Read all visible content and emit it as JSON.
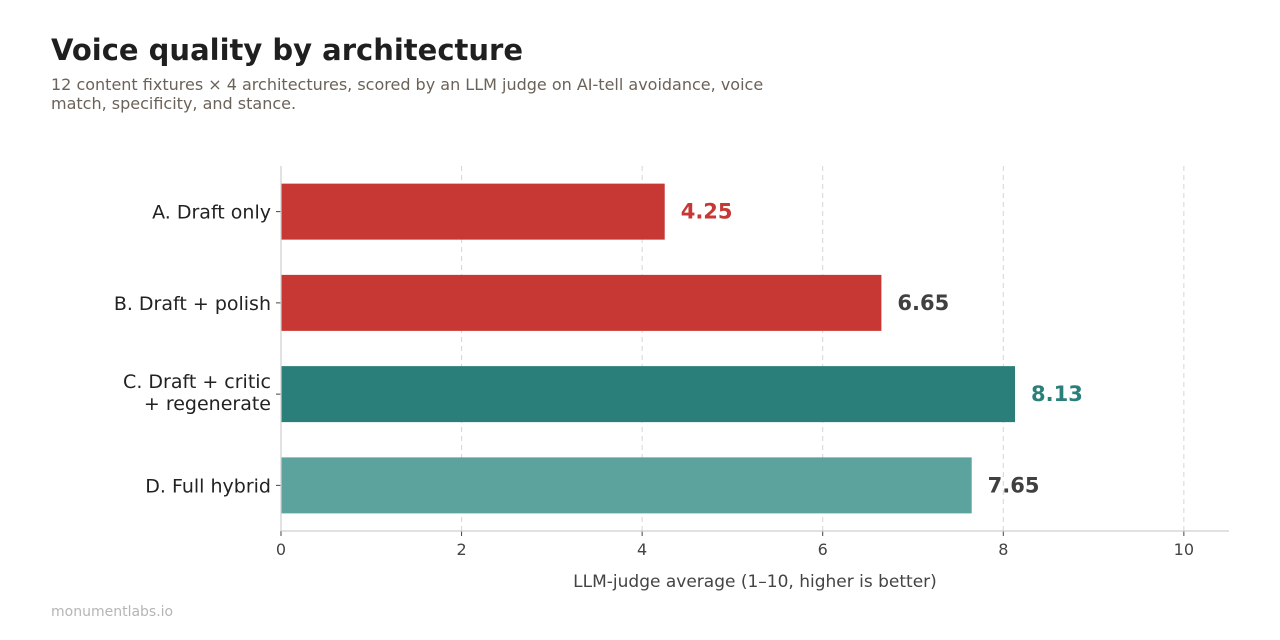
{
  "header": {
    "title": "Voice quality by architecture",
    "subtitle": "12 content fixtures × 4 architectures, scored by an LLM judge on AI-tell avoidance, voice match, specificity, and stance."
  },
  "footer": {
    "source": "monumentlabs.io"
  },
  "chart_data": {
    "type": "bar",
    "orientation": "horizontal",
    "title": "Voice quality by architecture",
    "xlabel": "LLM-judge average (1–10, higher is better)",
    "ylabel": "",
    "xlim": [
      0,
      10.5
    ],
    "xticks": [
      0,
      2,
      4,
      6,
      8,
      10
    ],
    "grid": "vertical dashed",
    "bars": [
      {
        "label_lines": [
          "A. Draft only"
        ],
        "value": 4.25,
        "value_label": "4.25",
        "color": "#c73834",
        "label_color": "#c73834"
      },
      {
        "label_lines": [
          "B. Draft + polish"
        ],
        "value": 6.65,
        "value_label": "6.65",
        "color": "#c73834",
        "label_color": "#404040"
      },
      {
        "label_lines": [
          "C. Draft + critic",
          "+ regenerate"
        ],
        "value": 8.13,
        "value_label": "8.13",
        "color": "#2a7f7a",
        "label_color": "#2a7f7a"
      },
      {
        "label_lines": [
          "D. Full hybrid"
        ],
        "value": 7.65,
        "value_label": "7.65",
        "color": "#5ba39c",
        "label_color": "#404040"
      }
    ]
  }
}
